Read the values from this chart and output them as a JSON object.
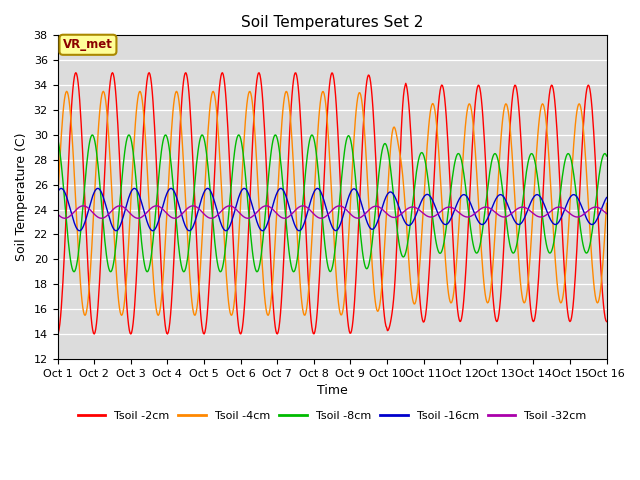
{
  "title": "Soil Temperatures Set 2",
  "xlabel": "Time",
  "ylabel": "Soil Temperature (C)",
  "xlim": [
    0,
    15
  ],
  "ylim": [
    12,
    38
  ],
  "yticks": [
    12,
    14,
    16,
    18,
    20,
    22,
    24,
    26,
    28,
    30,
    32,
    34,
    36,
    38
  ],
  "xtick_labels": [
    "Oct 1",
    "Oct 2",
    "Oct 3",
    "Oct 4",
    "Oct 5",
    "Oct 6",
    "Oct 7",
    "Oct 8",
    "Oct 9",
    "Oct 10",
    "Oct 11",
    "Oct 12",
    "Oct 13",
    "Oct 14",
    "Oct 15",
    "Oct 16"
  ],
  "bg_color": "#dcdcdc",
  "line_colors": {
    "Tsoil -2cm": "#ff0000",
    "Tsoil -4cm": "#ff8800",
    "Tsoil -8cm": "#00bb00",
    "Tsoil -16cm": "#0000cc",
    "Tsoil -32cm": "#aa00aa"
  },
  "annotation_text": "VR_met",
  "annotation_box_color": "#ffff99",
  "annotation_border_color": "#aa8800",
  "params": {
    "t2cm": {
      "base": 24.5,
      "amp_early": 10.5,
      "amp_late": 9.5,
      "phase": -1.5708,
      "phase_lag": 0.0,
      "transition_day": 9
    },
    "t4cm": {
      "base": 24.5,
      "amp_early": 9.0,
      "amp_late": 8.0,
      "phase": -1.5708,
      "phase_lag": 0.25,
      "transition_day": 9
    },
    "t8cm": {
      "base": 24.5,
      "amp_early": 5.5,
      "amp_late": 4.0,
      "phase": -1.5708,
      "phase_lag": 0.55,
      "transition_day": 9
    },
    "t16cm": {
      "base": 24.0,
      "amp_early": 1.7,
      "amp_late": 1.2,
      "phase": -1.5708,
      "phase_lag": 1.4,
      "transition_day": 9
    },
    "t32cm": {
      "base": 23.8,
      "amp_early": 0.5,
      "amp_late": 0.4,
      "phase": -1.5708,
      "phase_lag": 2.8,
      "transition_day": 9
    }
  }
}
